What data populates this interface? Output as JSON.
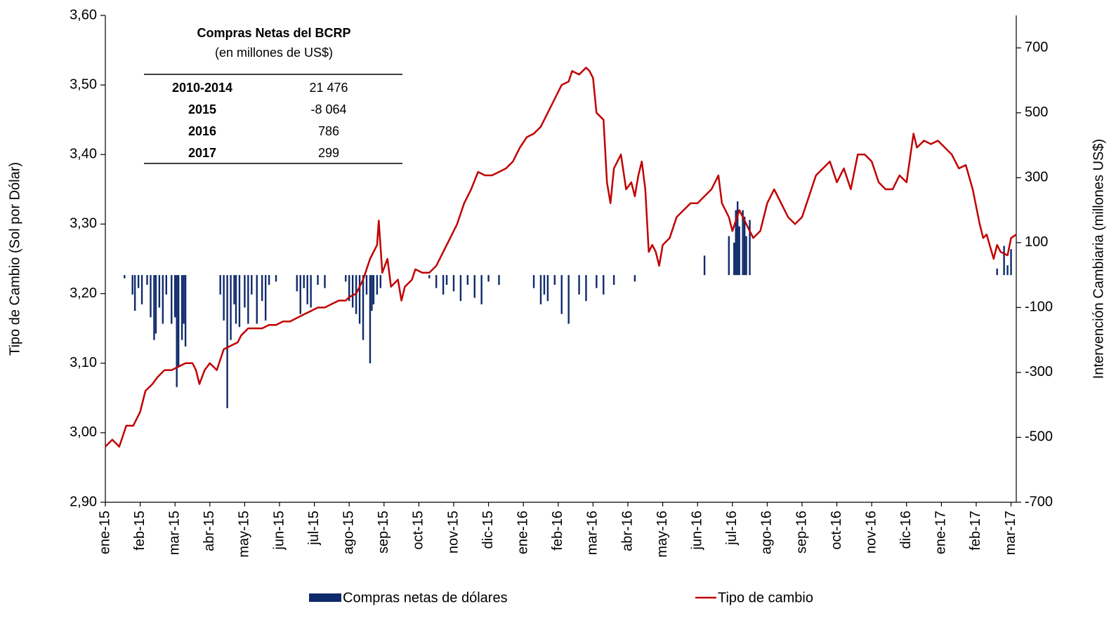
{
  "chart_data": {
    "type": "combo",
    "y_label": "Tipo de Cambio (Sol por Dólar)",
    "y2_label": "Intervención Cambiaria (millones US$)",
    "xlim": [
      0,
      26.15
    ],
    "xticks": [
      {
        "value": 0,
        "label": "ene-15"
      },
      {
        "value": 1,
        "label": "feb-15"
      },
      {
        "value": 2,
        "label": "mar-15"
      },
      {
        "value": 3,
        "label": "abr-15"
      },
      {
        "value": 4,
        "label": "may-15"
      },
      {
        "value": 5,
        "label": "jun-15"
      },
      {
        "value": 6,
        "label": "jul-15"
      },
      {
        "value": 7,
        "label": "ago-15"
      },
      {
        "value": 8,
        "label": "sep-15"
      },
      {
        "value": 9,
        "label": "oct-15"
      },
      {
        "value": 10,
        "label": "nov-15"
      },
      {
        "value": 11,
        "label": "dic-15"
      },
      {
        "value": 12,
        "label": "ene-16"
      },
      {
        "value": 13,
        "label": "feb-16"
      },
      {
        "value": 14,
        "label": "mar-16"
      },
      {
        "value": 15,
        "label": "abr-16"
      },
      {
        "value": 16,
        "label": "may-16"
      },
      {
        "value": 17,
        "label": "jun-16"
      },
      {
        "value": 18,
        "label": "jul-16"
      },
      {
        "value": 19,
        "label": "ago-16"
      },
      {
        "value": 20,
        "label": "sep-16"
      },
      {
        "value": 21,
        "label": "oct-16"
      },
      {
        "value": 22,
        "label": "nov-16"
      },
      {
        "value": 23,
        "label": "dic-16"
      },
      {
        "value": 24,
        "label": "ene-17"
      },
      {
        "value": 25,
        "label": "feb-17"
      },
      {
        "value": 26,
        "label": "mar-17"
      }
    ],
    "ylim": [
      2.9,
      3.6
    ],
    "yticks": [
      {
        "value": 2.9,
        "label": "2,90"
      },
      {
        "value": 3.0,
        "label": "3,00"
      },
      {
        "value": 3.1,
        "label": "3,10"
      },
      {
        "value": 3.2,
        "label": "3,20"
      },
      {
        "value": 3.3,
        "label": "3,30"
      },
      {
        "value": 3.4,
        "label": "3,40"
      },
      {
        "value": 3.5,
        "label": "3,50"
      },
      {
        "value": 3.6,
        "label": "3,60"
      }
    ],
    "y2lim": [
      -700,
      800
    ],
    "y2ticks": [
      -700,
      -500,
      -300,
      -100,
      100,
      300,
      500,
      700
    ],
    "series": [
      {
        "name": "Compras netas de dólares",
        "type": "bar",
        "axis": "y2",
        "color": "#0f2a6b",
        "x": [
          0.55,
          0.78,
          0.85,
          0.95,
          1.05,
          1.2,
          1.3,
          1.4,
          1.45,
          1.55,
          1.65,
          1.75,
          1.9,
          2.0,
          2.05,
          2.1,
          2.2,
          2.25,
          2.3,
          3.3,
          3.4,
          3.5,
          3.6,
          3.7,
          3.75,
          3.85,
          4.0,
          4.1,
          4.2,
          4.35,
          4.5,
          4.6,
          4.7,
          4.9,
          5.5,
          5.6,
          5.7,
          5.8,
          5.9,
          6.1,
          6.3,
          6.9,
          7.0,
          7.1,
          7.2,
          7.3,
          7.4,
          7.5,
          7.6,
          7.65,
          7.7,
          7.8,
          7.9,
          9.3,
          9.5,
          9.7,
          9.8,
          10.0,
          10.2,
          10.4,
          10.6,
          10.8,
          11.0,
          11.3,
          12.3,
          12.5,
          12.6,
          12.7,
          12.9,
          13.1,
          13.3,
          13.6,
          13.8,
          14.1,
          14.3,
          14.6,
          15.2,
          17.2,
          17.9,
          18.05,
          18.1,
          18.15,
          18.2,
          18.3,
          18.35,
          18.4,
          18.5,
          25.6,
          25.8,
          25.9,
          26.0
        ],
        "values": [
          -10,
          -60,
          -110,
          -40,
          -90,
          -30,
          -130,
          -200,
          -180,
          -100,
          -150,
          -60,
          -150,
          -130,
          -345,
          -280,
          -200,
          -150,
          -220,
          -60,
          -140,
          -410,
          -200,
          -90,
          -150,
          -160,
          -100,
          -150,
          -60,
          -150,
          -80,
          -140,
          -30,
          -20,
          -50,
          -120,
          -40,
          -90,
          -100,
          -30,
          -40,
          -20,
          -80,
          -100,
          -120,
          -150,
          -200,
          -60,
          -272,
          -110,
          -90,
          -60,
          -40,
          -10,
          -40,
          -60,
          -30,
          -50,
          -80,
          -30,
          -70,
          -90,
          -20,
          -30,
          -40,
          -90,
          -60,
          -80,
          -30,
          -120,
          -150,
          -60,
          -80,
          -40,
          -60,
          -30,
          -20,
          60,
          120,
          100,
          200,
          227,
          150,
          200,
          180,
          120,
          170,
          20,
          90,
          30,
          80
        ],
        "value_labels": null
      },
      {
        "name": "Tipo de cambio",
        "type": "line",
        "axis": "y",
        "color": "#c00000",
        "x": [
          0,
          0.2,
          0.4,
          0.6,
          0.8,
          1.0,
          1.15,
          1.35,
          1.5,
          1.7,
          1.9,
          2.1,
          2.3,
          2.5,
          2.6,
          2.7,
          2.85,
          3.0,
          3.2,
          3.4,
          3.6,
          3.8,
          3.9,
          4.1,
          4.3,
          4.5,
          4.7,
          4.9,
          5.1,
          5.3,
          5.5,
          5.7,
          5.9,
          6.1,
          6.3,
          6.5,
          6.7,
          6.9,
          7.0,
          7.2,
          7.4,
          7.6,
          7.8,
          7.85,
          7.95,
          8.1,
          8.2,
          8.4,
          8.5,
          8.6,
          8.8,
          8.9,
          9.1,
          9.3,
          9.5,
          9.7,
          9.9,
          10.1,
          10.3,
          10.5,
          10.7,
          10.9,
          11.1,
          11.3,
          11.5,
          11.7,
          11.9,
          12.1,
          12.3,
          12.5,
          12.7,
          12.9,
          13.1,
          13.3,
          13.4,
          13.6,
          13.8,
          13.9,
          14.0,
          14.1,
          14.3,
          14.4,
          14.5,
          14.6,
          14.8,
          14.95,
          15.1,
          15.2,
          15.3,
          15.4,
          15.5,
          15.6,
          15.7,
          15.8,
          15.9,
          16.0,
          16.2,
          16.4,
          16.6,
          16.8,
          17.0,
          17.2,
          17.4,
          17.6,
          17.7,
          17.9,
          18.0,
          18.2,
          18.4,
          18.6,
          18.8,
          19.0,
          19.2,
          19.4,
          19.6,
          19.8,
          20.0,
          20.2,
          20.4,
          20.6,
          20.8,
          21.0,
          21.2,
          21.4,
          21.6,
          21.8,
          22.0,
          22.2,
          22.4,
          22.6,
          22.8,
          23.0,
          23.2,
          23.3,
          23.5,
          23.7,
          23.9,
          24.1,
          24.3,
          24.5,
          24.7,
          24.9,
          25.1,
          25.2,
          25.3,
          25.5,
          25.6,
          25.7,
          25.9,
          26.0,
          26.15
        ],
        "values": [
          2.98,
          2.99,
          2.98,
          3.01,
          3.01,
          3.03,
          3.06,
          3.07,
          3.08,
          3.09,
          3.09,
          3.095,
          3.1,
          3.1,
          3.09,
          3.07,
          3.09,
          3.1,
          3.09,
          3.12,
          3.125,
          3.13,
          3.14,
          3.15,
          3.15,
          3.15,
          3.155,
          3.155,
          3.16,
          3.16,
          3.165,
          3.17,
          3.175,
          3.18,
          3.18,
          3.185,
          3.19,
          3.19,
          3.195,
          3.2,
          3.22,
          3.25,
          3.27,
          3.305,
          3.23,
          3.25,
          3.21,
          3.22,
          3.19,
          3.21,
          3.22,
          3.235,
          3.23,
          3.23,
          3.24,
          3.26,
          3.28,
          3.3,
          3.33,
          3.35,
          3.375,
          3.37,
          3.37,
          3.375,
          3.38,
          3.39,
          3.41,
          3.425,
          3.43,
          3.44,
          3.46,
          3.48,
          3.5,
          3.505,
          3.52,
          3.515,
          3.525,
          3.52,
          3.51,
          3.46,
          3.45,
          3.36,
          3.33,
          3.38,
          3.4,
          3.35,
          3.36,
          3.34,
          3.37,
          3.39,
          3.35,
          3.26,
          3.27,
          3.26,
          3.24,
          3.27,
          3.28,
          3.31,
          3.32,
          3.33,
          3.33,
          3.34,
          3.35,
          3.37,
          3.33,
          3.31,
          3.29,
          3.32,
          3.3,
          3.28,
          3.29,
          3.33,
          3.35,
          3.33,
          3.31,
          3.3,
          3.31,
          3.34,
          3.37,
          3.38,
          3.39,
          3.36,
          3.38,
          3.35,
          3.4,
          3.4,
          3.39,
          3.36,
          3.35,
          3.35,
          3.37,
          3.36,
          3.43,
          3.41,
          3.42,
          3.415,
          3.42,
          3.41,
          3.4,
          3.38,
          3.385,
          3.35,
          3.3,
          3.28,
          3.285,
          3.25,
          3.27,
          3.26,
          3.255,
          3.28,
          3.285
        ]
      }
    ],
    "inset": {
      "title": "Compras Netas del BCRP",
      "subtitle": "(en millones de US$)",
      "rows": [
        [
          "2010-2014",
          "21 476"
        ],
        [
          "2015",
          "-8 064"
        ],
        [
          "2016",
          "786"
        ],
        [
          "2017",
          "299"
        ]
      ]
    }
  }
}
